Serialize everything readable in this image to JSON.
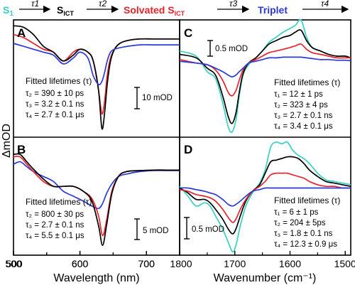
{
  "scheme": {
    "states": [
      {
        "main": "S",
        "sub": "1",
        "color": "#38d1c0"
      },
      {
        "main": "S",
        "sub": "ICT",
        "color": "#000000"
      },
      {
        "main": "Solvated S",
        "sub": "ICT",
        "color": "#e8232a"
      },
      {
        "main": "Triplet",
        "sub": "",
        "color": "#2a3ad6"
      }
    ],
    "arrows": [
      "τ1",
      "τ2",
      "τ3",
      "τ4"
    ]
  },
  "colors": {
    "s1": "#38d1c0",
    "sict": "#000000",
    "solvated": "#e8232a",
    "triplet": "#2a3ad6"
  },
  "axes": {
    "left_xlabel": "Wavelength (nm)",
    "right_xlabel": "Wavenumber (cm⁻¹)",
    "ylabel": "ΔmOD"
  },
  "panels": {
    "A": {
      "letter": "A",
      "fit_title": "Fitted lifetimes (τ)",
      "fit_lines": [
        "τ₂ = 390 ± 10 ps",
        "τ₃ = 3.2 ± 0.1 ns",
        "τ₄ = 2.7 ± 0.1 μs"
      ],
      "scale_bar": "10 mOD"
    },
    "B": {
      "letter": "B",
      "fit_title": "Fitted lifetimes (τ)",
      "fit_lines": [
        "τ₂ = 800 ± 30 ps",
        "τ₃ = 2.7 ± 0.1 ns",
        "τ₄ = 5.5 ± 0.1 μs"
      ],
      "scale_bar": "5 mOD"
    },
    "C": {
      "letter": "C",
      "fit_title": "Fitted lifetimes (τ)",
      "fit_lines": [
        "τ₁ = 12 ± 1 ps",
        "τ₂ = 323 ± 4 ps",
        "τ₃ = 2.7 ± 0.1 ns",
        "τ₄ = 3.4 ± 0.1 μs"
      ],
      "scale_bar": "0.5 mOD"
    },
    "D": {
      "letter": "D",
      "fit_title": "Fitted lifetimes (τ)",
      "fit_lines": [
        "τ₁ = 6 ± 1 ps",
        "τ₂ = 204 ± 5ps",
        "τ₃ = 1.8 ± 0.1 ns",
        "τ₄ = 12.3 ± 0.9 μs"
      ],
      "scale_bar": "0.5 mOD"
    }
  },
  "chart_data": [
    {
      "panel": "A",
      "type": "line",
      "xlim": [
        500,
        750
      ],
      "ylim": [
        -30,
        10
      ],
      "xticks": [
        500,
        600,
        700
      ],
      "series": [
        {
          "color": "#e8232a",
          "x": [
            500,
            515,
            530,
            545,
            560,
            575,
            590,
            600,
            612,
            620,
            628,
            633,
            637,
            641,
            646,
            652,
            660,
            672,
            690,
            710,
            730,
            750
          ],
          "y": [
            5,
            4,
            2,
            0,
            -1,
            -4,
            -1,
            0,
            -1,
            -4,
            -14,
            -22,
            -18,
            -9,
            -3,
            0,
            2,
            3,
            3.5,
            3.5,
            3.5,
            3.5
          ]
        },
        {
          "color": "#000000",
          "x": [
            500,
            515,
            530,
            545,
            560,
            575,
            590,
            600,
            612,
            620,
            628,
            633,
            637,
            641,
            646,
            652,
            660,
            672,
            690,
            710,
            730,
            750
          ],
          "y": [
            8,
            7.5,
            5,
            1,
            -1,
            -4,
            -2,
            0,
            -1,
            -4,
            -14,
            -27,
            -22,
            -12,
            -4,
            0,
            2,
            3,
            3.5,
            3.5,
            3.5,
            3.5
          ]
        },
        {
          "color": "#2a3ad6",
          "x": [
            500,
            515,
            530,
            545,
            560,
            575,
            590,
            600,
            612,
            620,
            628,
            633,
            637,
            641,
            646,
            652,
            660,
            672,
            690,
            710,
            730,
            750
          ],
          "y": [
            2,
            1,
            0,
            -1,
            -2,
            -5,
            -3,
            -1,
            -3,
            -9,
            -12,
            -11,
            -8,
            -4,
            -1,
            0,
            0.5,
            1,
            1.5,
            1.5,
            1.5,
            1.5
          ]
        }
      ]
    },
    {
      "panel": "B",
      "type": "line",
      "xlim": [
        500,
        750
      ],
      "ylim": [
        -16,
        8
      ],
      "xticks": [
        500,
        600,
        700
      ],
      "series": [
        {
          "color": "#2a3ad6",
          "x": [
            500,
            510,
            520,
            530,
            545,
            560,
            575,
            590,
            605,
            618,
            628,
            634,
            640,
            648,
            658,
            670,
            690,
            710,
            730,
            750
          ],
          "y": [
            2.5,
            3,
            2,
            1,
            0,
            -1,
            -3,
            -4,
            -5,
            -6,
            -6.5,
            -5.5,
            -3.5,
            -1.5,
            0,
            0.5,
            1,
            1.2,
            1.2,
            1.2
          ]
        },
        {
          "color": "#e8232a",
          "x": [
            500,
            510,
            520,
            530,
            545,
            560,
            575,
            590,
            605,
            618,
            628,
            634,
            640,
            648,
            658,
            670,
            690,
            710,
            730,
            750
          ],
          "y": [
            4,
            4,
            2.5,
            1,
            -1,
            -2,
            -2,
            -2,
            -3,
            -4.5,
            -8,
            -12,
            -9,
            -3,
            0,
            1,
            1.2,
            1.3,
            1.3,
            1.3
          ]
        },
        {
          "color": "#000000",
          "x": [
            500,
            510,
            520,
            530,
            545,
            560,
            575,
            590,
            605,
            618,
            628,
            634,
            640,
            648,
            658,
            670,
            690,
            710,
            730,
            750
          ],
          "y": [
            4.5,
            4.5,
            3,
            1.5,
            -0.5,
            -2,
            -2,
            -2,
            -3,
            -5,
            -10,
            -14,
            -10,
            -3.5,
            0,
            1,
            1.2,
            1.3,
            1.3,
            1.3
          ]
        }
      ]
    },
    {
      "panel": "C",
      "type": "line",
      "xlim": [
        1800,
        1490
      ],
      "ylim": [
        -2.2,
        1.2
      ],
      "series": [
        {
          "color": "#38d1c0",
          "x": [
            1800,
            1770,
            1750,
            1735,
            1722,
            1712,
            1705,
            1698,
            1692,
            1685,
            1675,
            1662,
            1650,
            1638,
            1625,
            1612,
            1600,
            1590,
            1580,
            1570,
            1560,
            1545,
            1530,
            1515,
            1500,
            1490
          ],
          "y": [
            0.3,
            0.15,
            -0.3,
            -0.5,
            -1.2,
            -1.9,
            -2.05,
            -1.7,
            -1.0,
            -0.4,
            -0.1,
            0.1,
            0.3,
            0.55,
            0.7,
            0.85,
            0.95,
            1.05,
            1.2,
            0.7,
            0.4,
            0.3,
            0.2,
            0.15,
            0.15,
            0.1
          ]
        },
        {
          "color": "#000000",
          "x": [
            1800,
            1770,
            1750,
            1735,
            1722,
            1712,
            1705,
            1698,
            1692,
            1685,
            1675,
            1662,
            1650,
            1638,
            1625,
            1612,
            1600,
            1590,
            1580,
            1570,
            1560,
            1545,
            1530,
            1515,
            1500,
            1490
          ],
          "y": [
            0.2,
            0.1,
            -0.2,
            -0.4,
            -1.0,
            -1.6,
            -1.8,
            -1.5,
            -0.9,
            -0.35,
            -0.05,
            0.1,
            0.3,
            0.5,
            0.6,
            0.7,
            0.75,
            0.85,
            0.9,
            0.6,
            0.4,
            0.3,
            0.2,
            0.15,
            0.15,
            0.1
          ]
        },
        {
          "color": "#e8232a",
          "x": [
            1800,
            1770,
            1750,
            1735,
            1722,
            1712,
            1705,
            1698,
            1692,
            1685,
            1675,
            1662,
            1650,
            1638,
            1625,
            1612,
            1600,
            1590,
            1580,
            1570,
            1560,
            1545,
            1530,
            1515,
            1500,
            1490
          ],
          "y": [
            0.05,
            -0.05,
            -0.1,
            -0.25,
            -0.55,
            -0.9,
            -1.0,
            -0.85,
            -0.55,
            -0.25,
            -0.05,
            0.05,
            0.15,
            0.25,
            0.3,
            0.35,
            0.4,
            0.45,
            0.5,
            0.35,
            0.25,
            0.2,
            0.15,
            0.1,
            0.1,
            0.1
          ]
        },
        {
          "color": "#2a3ad6",
          "x": [
            1800,
            1770,
            1750,
            1735,
            1722,
            1712,
            1705,
            1698,
            1692,
            1685,
            1675,
            1662,
            1650,
            1638,
            1625,
            1612,
            1600,
            1590,
            1580,
            1570,
            1560,
            1545,
            1530,
            1515,
            1500,
            1490
          ],
          "y": [
            0,
            -0.05,
            -0.1,
            -0.2,
            -0.3,
            -0.4,
            -0.45,
            -0.4,
            -0.3,
            -0.2,
            -0.05,
            0,
            0.05,
            0.1,
            0.1,
            0.12,
            0.12,
            0.12,
            0.12,
            0.1,
            0.08,
            0.05,
            0.05,
            0.03,
            0.03,
            0.02
          ]
        }
      ]
    },
    {
      "panel": "D",
      "type": "line",
      "xlim": [
        1800,
        1490
      ],
      "ylim": [
        -2.0,
        1.6
      ],
      "xticks": [
        1800,
        1700,
        1600,
        1500
      ],
      "series": [
        {
          "color": "#38d1c0",
          "x": [
            1800,
            1785,
            1770,
            1755,
            1745,
            1735,
            1722,
            1712,
            1704,
            1698,
            1690,
            1680,
            1668,
            1655,
            1645,
            1635,
            1625,
            1615,
            1605,
            1595,
            1585,
            1575,
            1565,
            1550,
            1535,
            1520,
            1505,
            1490
          ],
          "y": [
            0.1,
            -0.2,
            -0.5,
            -0.4,
            -0.5,
            -0.8,
            -1.2,
            -1.6,
            -1.9,
            -1.7,
            -1.1,
            -0.5,
            -0.1,
            0.2,
            0.6,
            1.3,
            1.45,
            1.4,
            1.45,
            1.2,
            1.05,
            0.95,
            0.8,
            0.5,
            0.3,
            0.25,
            0.2,
            0.15
          ]
        },
        {
          "color": "#000000",
          "x": [
            1800,
            1785,
            1770,
            1755,
            1745,
            1735,
            1722,
            1712,
            1704,
            1698,
            1690,
            1680,
            1668,
            1655,
            1645,
            1635,
            1625,
            1615,
            1605,
            1595,
            1585,
            1575,
            1565,
            1550,
            1535,
            1520,
            1505,
            1490
          ],
          "y": [
            0.05,
            -0.1,
            -0.3,
            -0.3,
            -0.4,
            -0.6,
            -0.9,
            -1.2,
            -1.35,
            -1.2,
            -0.8,
            -0.35,
            -0.05,
            0.15,
            0.5,
            0.85,
            0.9,
            0.95,
            1.0,
            1.0,
            0.95,
            0.8,
            0.6,
            0.4,
            0.25,
            0.2,
            0.15,
            0.1
          ]
        },
        {
          "color": "#e8232a",
          "x": [
            1800,
            1785,
            1770,
            1755,
            1745,
            1735,
            1722,
            1712,
            1704,
            1698,
            1690,
            1680,
            1668,
            1655,
            1645,
            1635,
            1625,
            1615,
            1605,
            1595,
            1585,
            1575,
            1565,
            1550,
            1535,
            1520,
            1505,
            1490
          ],
          "y": [
            0,
            -0.05,
            -0.15,
            -0.2,
            -0.25,
            -0.35,
            -0.6,
            -0.85,
            -1.0,
            -0.9,
            -0.6,
            -0.3,
            -0.05,
            0.1,
            0.25,
            0.45,
            0.5,
            0.5,
            0.5,
            0.45,
            0.4,
            0.35,
            0.25,
            0.15,
            0.1,
            0.1,
            0.05,
            0.05
          ]
        },
        {
          "color": "#2a3ad6",
          "x": [
            1800,
            1785,
            1770,
            1755,
            1745,
            1735,
            1722,
            1712,
            1704,
            1698,
            1690,
            1680,
            1668,
            1655,
            1645,
            1635,
            1625,
            1615,
            1605,
            1595,
            1585,
            1575,
            1565,
            1550,
            1535,
            1520,
            1505,
            1490
          ],
          "y": [
            0.05,
            0.05,
            0,
            -0.05,
            -0.1,
            -0.15,
            -0.3,
            -0.45,
            -0.5,
            -0.45,
            -0.35,
            -0.2,
            -0.05,
            0,
            0.05,
            0.05,
            0.05,
            0.05,
            0.05,
            0.05,
            0.05,
            0.05,
            0.05,
            0.05,
            0.05,
            0.05,
            0.05,
            0.05
          ]
        }
      ]
    }
  ]
}
